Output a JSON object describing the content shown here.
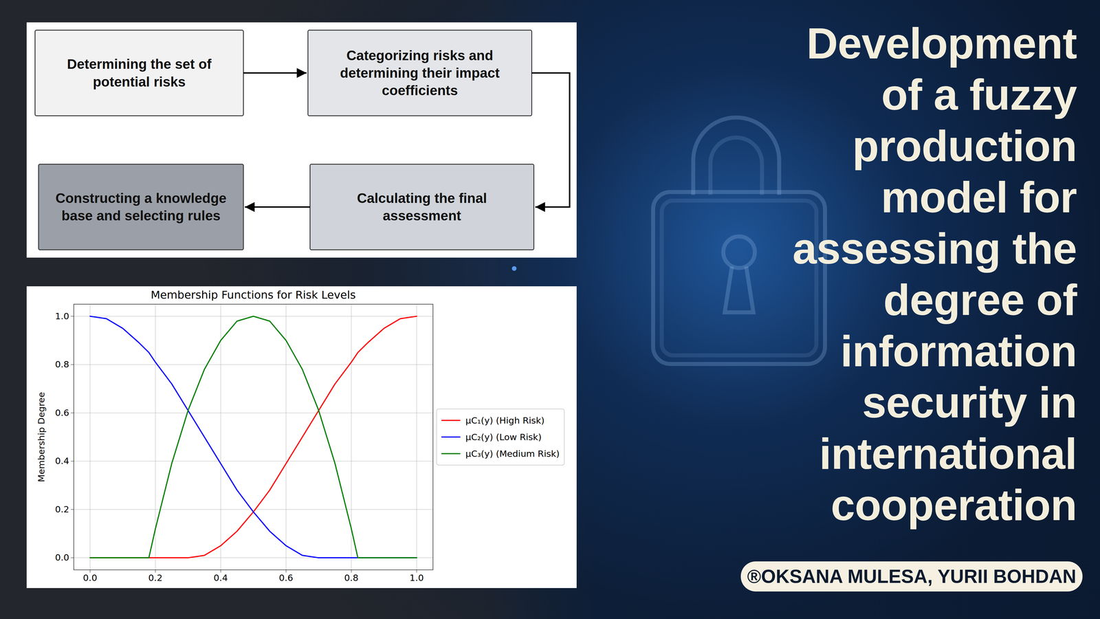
{
  "title": [
    "Development",
    "of a fuzzy",
    "production",
    "model for",
    "assessing the",
    "degree of",
    "information",
    "security in",
    "international",
    "cooperation"
  ],
  "authors": "®OKSANA MULESA, YURII BOHDAN",
  "flowchart": {
    "nodes": [
      {
        "lines": [
          "Determining the set of",
          "potential risks"
        ]
      },
      {
        "lines": [
          "Categorizing risks and",
          "determining their impact",
          "coefficients"
        ]
      },
      {
        "lines": [
          "Calculating the final",
          "assessment"
        ]
      },
      {
        "lines": [
          "Constructing a knowledge",
          "base and selecting rules"
        ]
      }
    ]
  },
  "chart_data": {
    "type": "line",
    "title": "Membership Functions for Risk Levels",
    "y_label": "Membership Degree",
    "x": [
      0,
      0.05,
      0.1,
      0.15,
      0.18,
      0.2,
      0.25,
      0.3,
      0.35,
      0.4,
      0.45,
      0.5,
      0.55,
      0.6,
      0.65,
      0.7,
      0.75,
      0.8,
      0.82,
      0.85,
      0.9,
      0.95,
      1
    ],
    "series": [
      {
        "name": "μC₁(y) (High Risk)",
        "color": "red",
        "values": [
          0,
          0,
          0,
          0,
          0,
          0,
          0,
          0,
          0.01,
          0.05,
          0.11,
          0.19,
          0.28,
          0.39,
          0.5,
          0.61,
          0.72,
          0.81,
          0.85,
          0.89,
          0.95,
          0.99,
          1
        ]
      },
      {
        "name": "μC₂(y) (Low Risk)",
        "color": "blue",
        "values": [
          1,
          0.99,
          0.95,
          0.89,
          0.85,
          0.81,
          0.72,
          0.61,
          0.5,
          0.39,
          0.28,
          0.19,
          0.11,
          0.05,
          0.01,
          0,
          0,
          0,
          0,
          0,
          0,
          0,
          0
        ]
      },
      {
        "name": "μC₃(y) (Medium Risk)",
        "color": "green",
        "values": [
          0,
          0,
          0,
          0,
          0,
          0.12,
          0.39,
          0.61,
          0.78,
          0.9,
          0.98,
          1,
          0.98,
          0.9,
          0.78,
          0.61,
          0.39,
          0.12,
          0,
          0,
          0,
          0,
          0
        ]
      }
    ],
    "xlim": [
      -0.05,
      1.05
    ],
    "ylim": [
      -0.05,
      1.05
    ],
    "xticks": [
      {
        "value": 0,
        "label": "0.0"
      },
      0.2,
      0.4,
      0.6,
      0.8,
      {
        "value": 1,
        "label": "1.0"
      }
    ],
    "yticks": [
      {
        "value": 0,
        "label": "0.0"
      },
      0.2,
      0.4,
      0.6,
      0.8,
      {
        "value": 1,
        "label": "1.0"
      }
    ],
    "grid": true,
    "legend": "right"
  }
}
